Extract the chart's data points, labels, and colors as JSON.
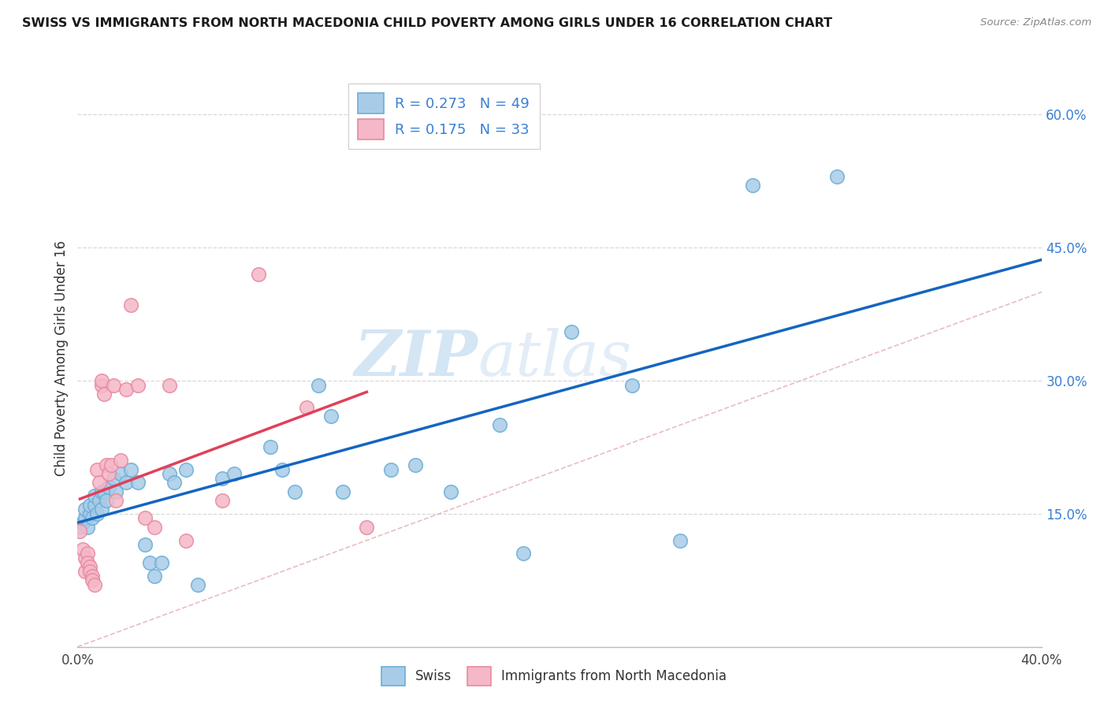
{
  "title": "SWISS VS IMMIGRANTS FROM NORTH MACEDONIA CHILD POVERTY AMONG GIRLS UNDER 16 CORRELATION CHART",
  "source": "Source: ZipAtlas.com",
  "ylabel": "Child Poverty Among Girls Under 16",
  "xlim": [
    0.0,
    0.4
  ],
  "ylim": [
    0.0,
    0.65
  ],
  "yticks_right": [
    0.15,
    0.3,
    0.45,
    0.6
  ],
  "ytick_right_labels": [
    "15.0%",
    "30.0%",
    "45.0%",
    "60.0%"
  ],
  "watermark_zip": "ZIP",
  "watermark_atlas": "atlas",
  "swiss_color": "#a8cce8",
  "swiss_edge": "#6baed6",
  "imm_color": "#f5b8c8",
  "imm_edge": "#e88aa0",
  "trend_swiss_color": "#1565c0",
  "trend_imm_color": "#e0405a",
  "diagonal_color": "#e8b4c0",
  "R_swiss": 0.273,
  "N_swiss": 49,
  "R_imm": 0.175,
  "N_imm": 33,
  "swiss_x": [
    0.001,
    0.002,
    0.003,
    0.003,
    0.004,
    0.005,
    0.005,
    0.006,
    0.007,
    0.007,
    0.008,
    0.009,
    0.01,
    0.01,
    0.011,
    0.012,
    0.013,
    0.015,
    0.016,
    0.018,
    0.02,
    0.022,
    0.025,
    0.028,
    0.03,
    0.032,
    0.035,
    0.038,
    0.04,
    0.045,
    0.05,
    0.06,
    0.065,
    0.08,
    0.085,
    0.09,
    0.1,
    0.105,
    0.11,
    0.13,
    0.14,
    0.155,
    0.175,
    0.185,
    0.205,
    0.23,
    0.25,
    0.28,
    0.315
  ],
  "swiss_y": [
    0.135,
    0.14,
    0.145,
    0.155,
    0.135,
    0.15,
    0.16,
    0.145,
    0.16,
    0.17,
    0.15,
    0.165,
    0.155,
    0.175,
    0.175,
    0.165,
    0.18,
    0.19,
    0.175,
    0.195,
    0.185,
    0.2,
    0.185,
    0.115,
    0.095,
    0.08,
    0.095,
    0.195,
    0.185,
    0.2,
    0.07,
    0.19,
    0.195,
    0.225,
    0.2,
    0.175,
    0.295,
    0.26,
    0.175,
    0.2,
    0.205,
    0.175,
    0.25,
    0.105,
    0.355,
    0.295,
    0.12,
    0.52,
    0.53
  ],
  "imm_x": [
    0.001,
    0.002,
    0.003,
    0.003,
    0.004,
    0.004,
    0.005,
    0.005,
    0.006,
    0.006,
    0.007,
    0.008,
    0.009,
    0.01,
    0.01,
    0.011,
    0.012,
    0.013,
    0.014,
    0.015,
    0.016,
    0.018,
    0.02,
    0.022,
    0.025,
    0.028,
    0.032,
    0.038,
    0.045,
    0.06,
    0.075,
    0.095,
    0.12
  ],
  "imm_y": [
    0.13,
    0.11,
    0.1,
    0.085,
    0.105,
    0.095,
    0.09,
    0.085,
    0.08,
    0.075,
    0.07,
    0.2,
    0.185,
    0.295,
    0.3,
    0.285,
    0.205,
    0.195,
    0.205,
    0.295,
    0.165,
    0.21,
    0.29,
    0.385,
    0.295,
    0.145,
    0.135,
    0.295,
    0.12,
    0.165,
    0.42,
    0.27,
    0.135
  ]
}
